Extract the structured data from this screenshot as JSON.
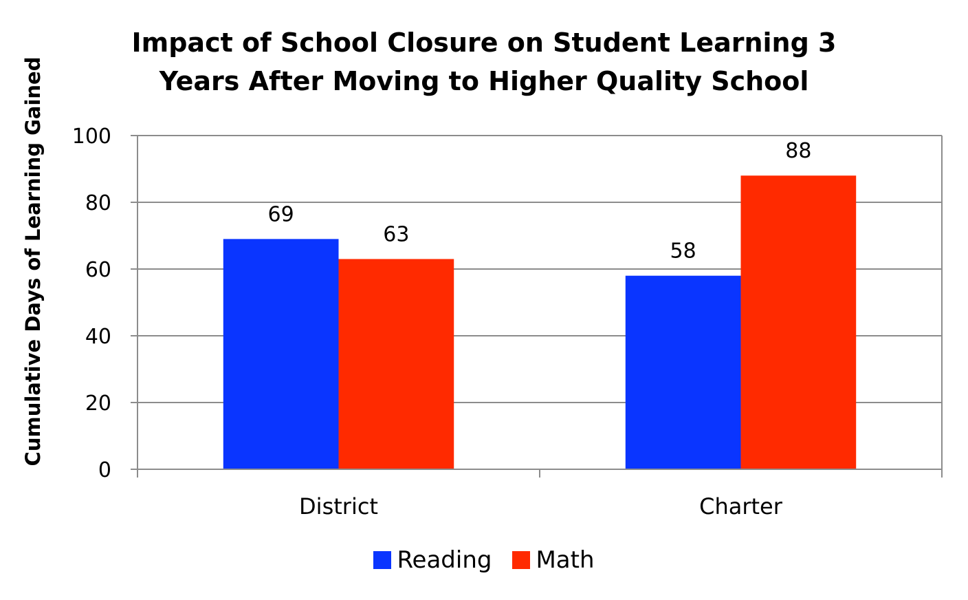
{
  "chart_data": {
    "type": "bar",
    "title_lines": [
      "Impact of School Closure on Student Learning 3",
      "Years After Moving to Higher Quality School"
    ],
    "xlabel": "",
    "ylabel": "Cumulative Days of Learning Gained",
    "ylim": [
      0,
      100
    ],
    "yticks": [
      0,
      20,
      40,
      60,
      80,
      100
    ],
    "categories": [
      "District",
      "Charter"
    ],
    "series": [
      {
        "name": "Reading",
        "values": [
          69,
          58
        ],
        "color": "#0a35ff"
      },
      {
        "name": "Math",
        "values": [
          63,
          88
        ],
        "color": "#ff2a00"
      }
    ],
    "data_labels": true,
    "grid": true,
    "legend_position": "bottom"
  }
}
